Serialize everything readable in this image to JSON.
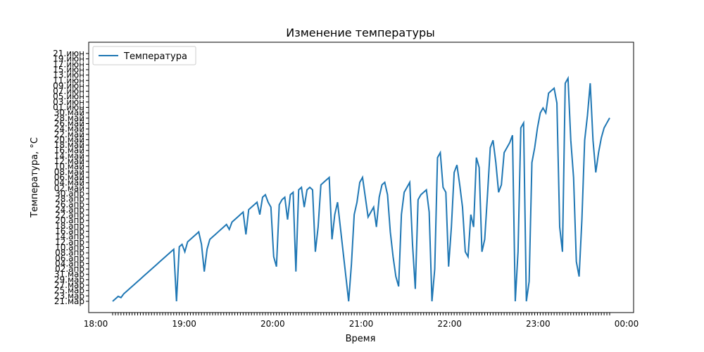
{
  "chart_data": {
    "type": "line",
    "title": "Изменение температуры",
    "xlabel": "Время",
    "ylabel": "Температура, °C",
    "legend": {
      "label": "Температура",
      "placement": "top-left"
    },
    "series_color": "#1f77b4",
    "y_tick_labels_sample": [
      "21.мар",
      "23.мар",
      "25.мар",
      "27.мар",
      "29.мар",
      "31.мар",
      "02.апр",
      "04.апр",
      "06.апр",
      "08.апр",
      "10.апр",
      "12.апр",
      "14.апр",
      "16.апр",
      "18.апр",
      "20.апр",
      "22.апр",
      "24.апр",
      "26.апр",
      "28.апр",
      "30.апр",
      "02.май",
      "04.май",
      "06.май",
      "08.май",
      "10.май",
      "12.май",
      "14.май",
      "16.май",
      "18.май",
      "20.май",
      "22.май",
      "24.май",
      "26.май",
      "28.май",
      "30.май",
      "01.июн",
      "03.июн",
      "05.июн",
      "07.июн",
      "09.июн",
      "11.июн",
      "13.июн",
      "15.июн",
      "17.июн",
      "19.июн",
      "21.июн"
    ],
    "x_tick_labels_sample": [
      "18:00",
      "19:00",
      "20:00",
      "21:00",
      "22:00",
      "23:00",
      "00:00"
    ],
    "x": [
      0,
      1,
      2,
      3,
      4,
      5,
      6,
      7,
      8,
      9,
      10,
      11,
      12,
      13,
      14,
      15,
      16,
      17,
      18,
      19,
      20,
      21,
      22,
      23,
      24,
      25,
      26,
      27,
      28,
      29,
      30,
      31,
      32,
      33,
      34,
      35,
      36,
      37,
      38,
      39,
      40,
      41,
      42,
      43,
      44,
      45,
      46,
      47,
      48,
      49,
      50,
      51,
      52,
      53,
      54,
      55,
      56,
      57,
      58,
      59,
      60,
      61,
      62,
      63,
      64,
      65,
      66,
      67,
      68,
      69,
      70,
      71,
      72,
      73,
      74,
      75,
      76,
      77,
      78,
      79,
      80,
      81,
      82,
      83,
      84,
      85,
      86,
      87,
      88,
      89,
      90,
      91,
      92,
      93,
      94,
      95,
      96,
      97,
      98,
      99,
      100,
      101,
      102,
      103,
      104,
      105,
      106,
      107,
      108,
      109,
      110,
      111,
      112,
      113,
      114,
      115,
      116,
      117,
      118,
      119,
      120,
      121,
      122,
      123,
      124,
      125,
      126,
      127,
      128,
      129,
      130,
      131,
      132,
      133,
      134,
      135,
      136,
      137,
      138,
      139,
      140,
      141,
      142,
      143,
      144,
      145,
      146,
      147,
      148,
      149,
      150,
      151,
      152,
      153,
      154,
      155,
      156,
      157,
      158,
      159,
      160,
      161,
      162,
      163,
      164,
      165,
      166,
      167,
      168,
      169,
      170,
      171,
      172,
      173,
      174,
      175,
      176,
      177,
      178,
      179
    ],
    "values": [
      0,
      1,
      2,
      1.5,
      3,
      4,
      5,
      6,
      7,
      8,
      9,
      10,
      11,
      12,
      13,
      14,
      15,
      16,
      17,
      18,
      19,
      20,
      21,
      0,
      22,
      23,
      20,
      24,
      25,
      26,
      27,
      28,
      23,
      12,
      21,
      25,
      26,
      27,
      28,
      29,
      30,
      31,
      29,
      32,
      33,
      34,
      35,
      36,
      27,
      37,
      38,
      39,
      40,
      35,
      42,
      43,
      40,
      38,
      18,
      14,
      39,
      41,
      42,
      33,
      43,
      44,
      12,
      45,
      46,
      38,
      45,
      46,
      45,
      20,
      30,
      47,
      48,
      49,
      50,
      25,
      35,
      40,
      30,
      20,
      10,
      0,
      15,
      35,
      40,
      48,
      50,
      42,
      34,
      36,
      38,
      30,
      42,
      47,
      48,
      43,
      28,
      18,
      10,
      6,
      35,
      44,
      46,
      48,
      23,
      5,
      41,
      43,
      44,
      45,
      36,
      0,
      13,
      58,
      60,
      46,
      44,
      14,
      30,
      52,
      55,
      47,
      38,
      20,
      18,
      35,
      30,
      58,
      54,
      20,
      25,
      43,
      62,
      65,
      56,
      44,
      47,
      60,
      62,
      64,
      67,
      0,
      20,
      70,
      72,
      0,
      8,
      56,
      62,
      70,
      76,
      78,
      76,
      84,
      85,
      86,
      80,
      30,
      20,
      88,
      90,
      65,
      50,
      16,
      10,
      33,
      65,
      75,
      88,
      65,
      52,
      60,
      66,
      70,
      72,
      74
    ],
    "ylim": [
      0,
      100
    ],
    "grid": false
  }
}
